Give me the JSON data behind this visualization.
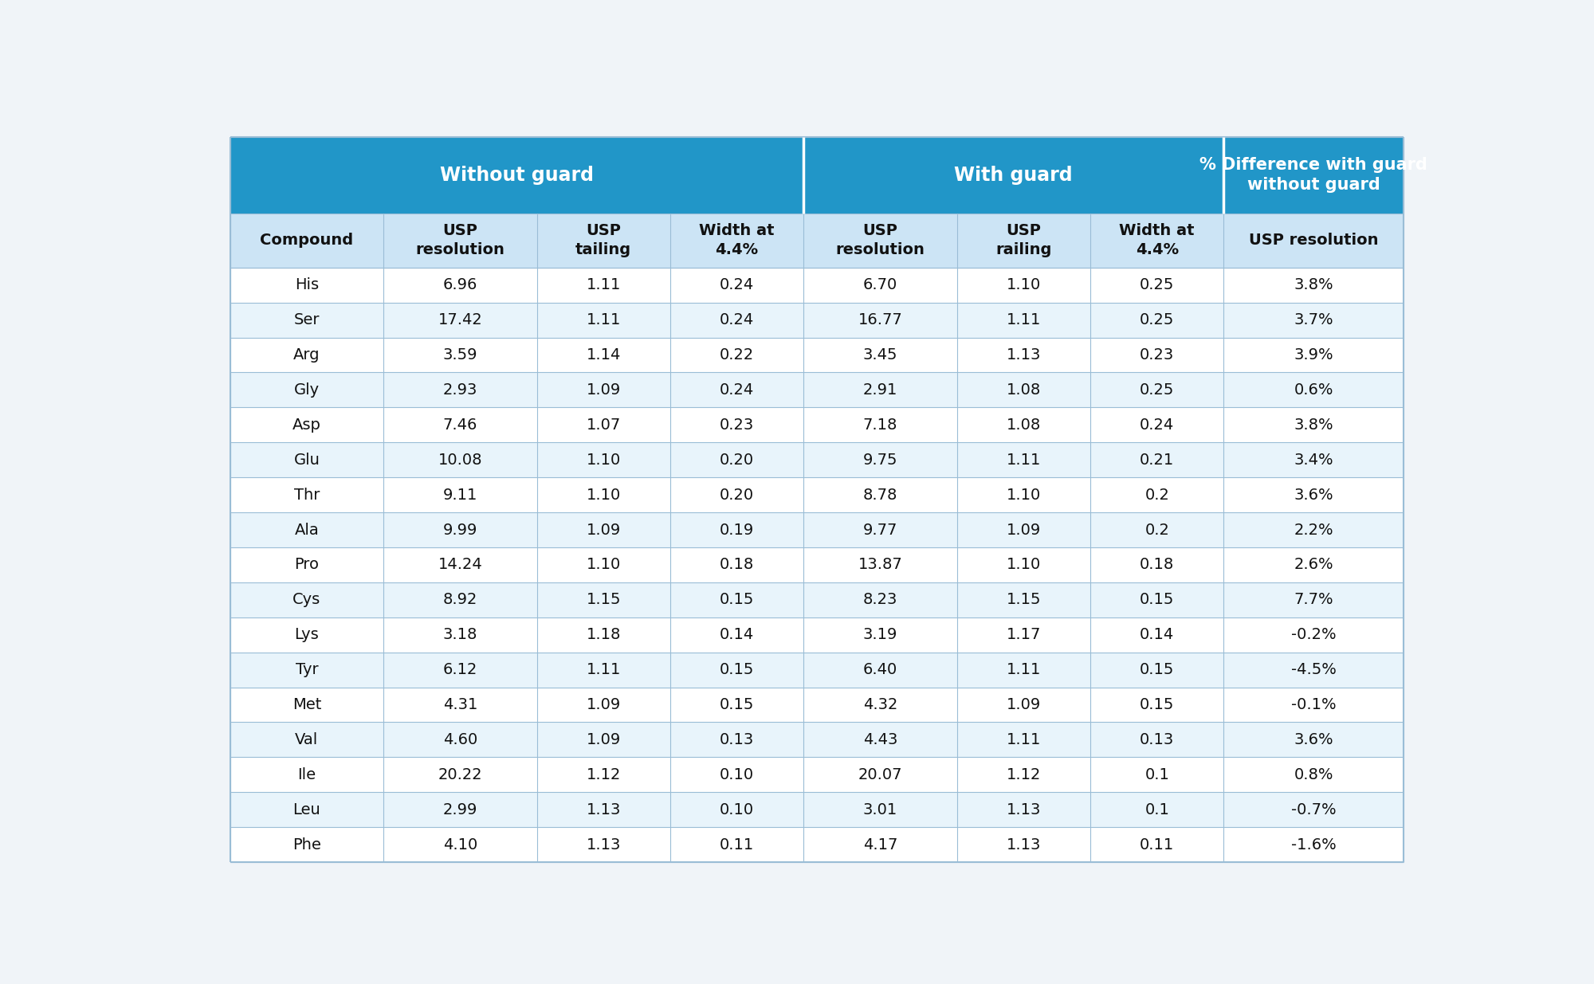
{
  "header_row1": [
    "Without guard",
    "With guard",
    "% Difference with guard\nwithout guard"
  ],
  "header_row2": [
    "Compound",
    "USP\nresolution",
    "USP\ntailing",
    "Width at\n4.4%",
    "USP\nresolution",
    "USP\nrailing",
    "Width at\n4.4%",
    "USP resolution"
  ],
  "rows": [
    [
      "His",
      "6.96",
      "1.11",
      "0.24",
      "6.70",
      "1.10",
      "0.25",
      "3.8%"
    ],
    [
      "Ser",
      "17.42",
      "1.11",
      "0.24",
      "16.77",
      "1.11",
      "0.25",
      "3.7%"
    ],
    [
      "Arg",
      "3.59",
      "1.14",
      "0.22",
      "3.45",
      "1.13",
      "0.23",
      "3.9%"
    ],
    [
      "Gly",
      "2.93",
      "1.09",
      "0.24",
      "2.91",
      "1.08",
      "0.25",
      "0.6%"
    ],
    [
      "Asp",
      "7.46",
      "1.07",
      "0.23",
      "7.18",
      "1.08",
      "0.24",
      "3.8%"
    ],
    [
      "Glu",
      "10.08",
      "1.10",
      "0.20",
      "9.75",
      "1.11",
      "0.21",
      "3.4%"
    ],
    [
      "Thr",
      "9.11",
      "1.10",
      "0.20",
      "8.78",
      "1.10",
      "0.2",
      "3.6%"
    ],
    [
      "Ala",
      "9.99",
      "1.09",
      "0.19",
      "9.77",
      "1.09",
      "0.2",
      "2.2%"
    ],
    [
      "Pro",
      "14.24",
      "1.10",
      "0.18",
      "13.87",
      "1.10",
      "0.18",
      "2.6%"
    ],
    [
      "Cys",
      "8.92",
      "1.15",
      "0.15",
      "8.23",
      "1.15",
      "0.15",
      "7.7%"
    ],
    [
      "Lys",
      "3.18",
      "1.18",
      "0.14",
      "3.19",
      "1.17",
      "0.14",
      "-0.2%"
    ],
    [
      "Tyr",
      "6.12",
      "1.11",
      "0.15",
      "6.40",
      "1.11",
      "0.15",
      "-4.5%"
    ],
    [
      "Met",
      "4.31",
      "1.09",
      "0.15",
      "4.32",
      "1.09",
      "0.15",
      "-0.1%"
    ],
    [
      "Val",
      "4.60",
      "1.09",
      "0.13",
      "4.43",
      "1.11",
      "0.13",
      "3.6%"
    ],
    [
      "Ile",
      "20.22",
      "1.12",
      "0.10",
      "20.07",
      "1.12",
      "0.1",
      "0.8%"
    ],
    [
      "Leu",
      "2.99",
      "1.13",
      "0.10",
      "3.01",
      "1.13",
      "0.1",
      "-0.7%"
    ],
    [
      "Phe",
      "4.10",
      "1.13",
      "0.11",
      "4.17",
      "1.13",
      "0.11",
      "-1.6%"
    ]
  ],
  "header_bg": "#2196c8",
  "header2_bg": "#cce4f5",
  "alt_row_bg": "#e8f4fb",
  "white_row_bg": "#ffffff",
  "header_text_color": "#ffffff",
  "header2_text_color": "#111111",
  "cell_text_color": "#111111",
  "border_color": "#9abdd6",
  "fig_bg": "#f0f4f8",
  "col_widths_rel": [
    1.15,
    1.15,
    1.0,
    1.0,
    1.15,
    1.0,
    1.0,
    1.35
  ]
}
